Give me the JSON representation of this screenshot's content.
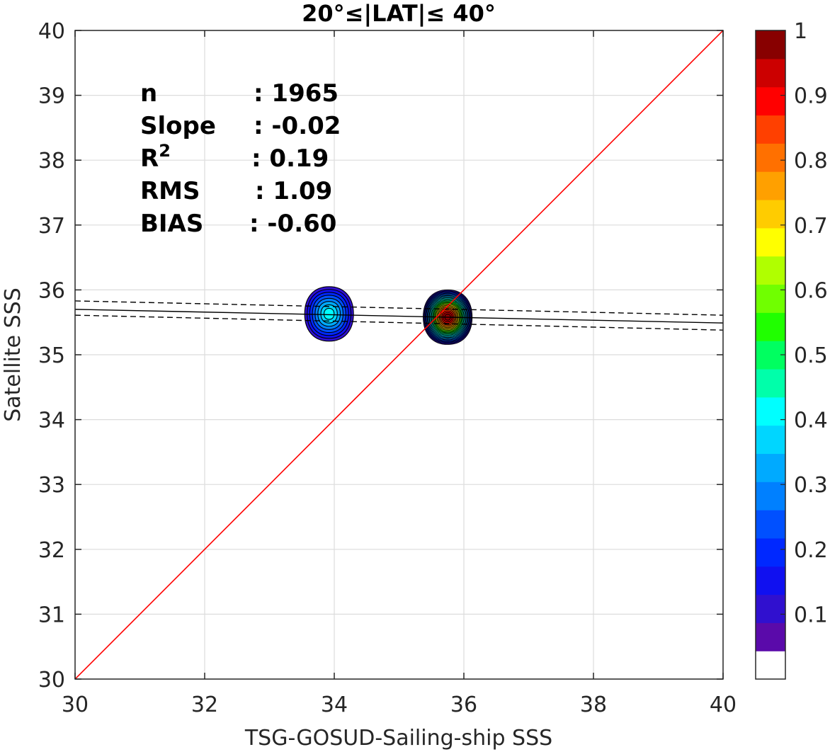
{
  "chart_data": {
    "type": "scatter",
    "title": "20°≤|LAT|≤ 40°",
    "xlabel": "TSG-GOSUD-Sailing-ship SSS",
    "ylabel": "Satellite SSS",
    "xlim": [
      30,
      40
    ],
    "ylim": [
      30,
      40
    ],
    "x_ticks": [
      "30",
      "32",
      "34",
      "36",
      "38",
      "40"
    ],
    "y_ticks": [
      "30",
      "31",
      "32",
      "33",
      "34",
      "35",
      "36",
      "37",
      "38",
      "39",
      "40"
    ],
    "grid": true,
    "stats": [
      {
        "label": "n",
        "value": ": 1965"
      },
      {
        "label": "Slope",
        "value": ": -0.02"
      },
      {
        "label": "R",
        "sup": "2",
        "value": ": 0.19"
      },
      {
        "label": "RMS",
        "value": ": 1.09"
      },
      {
        "label": "BIAS",
        "value": ": -0.60"
      }
    ],
    "identity_line": {
      "x": [
        30,
        40
      ],
      "y": [
        30,
        40
      ],
      "color": "#ff0000"
    },
    "regression_line": {
      "x": [
        30,
        40
      ],
      "y": [
        35.7,
        35.49
      ],
      "color": "#000000"
    },
    "confidence_band_upper": {
      "x": [
        30,
        40
      ],
      "y": [
        35.83,
        35.61
      ]
    },
    "confidence_band_lower": {
      "x": [
        30,
        40
      ],
      "y": [
        35.61,
        35.38
      ]
    },
    "density_clusters": [
      {
        "center": [
          33.92,
          35.63
        ],
        "peak": 0.42
      },
      {
        "center": [
          35.75,
          35.58
        ],
        "peak": 1.0
      }
    ],
    "colorbar": {
      "range": [
        0,
        1
      ],
      "tick_labels": [
        "0.1",
        "0.2",
        "0.3",
        "0.4",
        "0.5",
        "0.6",
        "0.7",
        "0.8",
        "0.9",
        "1"
      ],
      "levels": [
        0.05,
        0.1,
        0.15,
        0.2,
        0.25,
        0.3,
        0.35,
        0.4,
        0.45,
        0.5,
        0.55,
        0.6,
        0.65,
        0.7,
        0.75,
        0.8,
        0.85,
        0.9,
        0.95,
        1.0
      ],
      "colors": [
        "#ffffff",
        "#5a0aaa",
        "#3010cf",
        "#1010f0",
        "#0028ff",
        "#0050ff",
        "#0080ff",
        "#00aaff",
        "#00d6ff",
        "#00ffff",
        "#00ffaa",
        "#00ff60",
        "#20ff00",
        "#70ff00",
        "#b0ff00",
        "#ffff00",
        "#ffcc00",
        "#ffa000",
        "#ff7000",
        "#ff4000",
        "#ff0000",
        "#cc0000",
        "#880000"
      ]
    }
  }
}
